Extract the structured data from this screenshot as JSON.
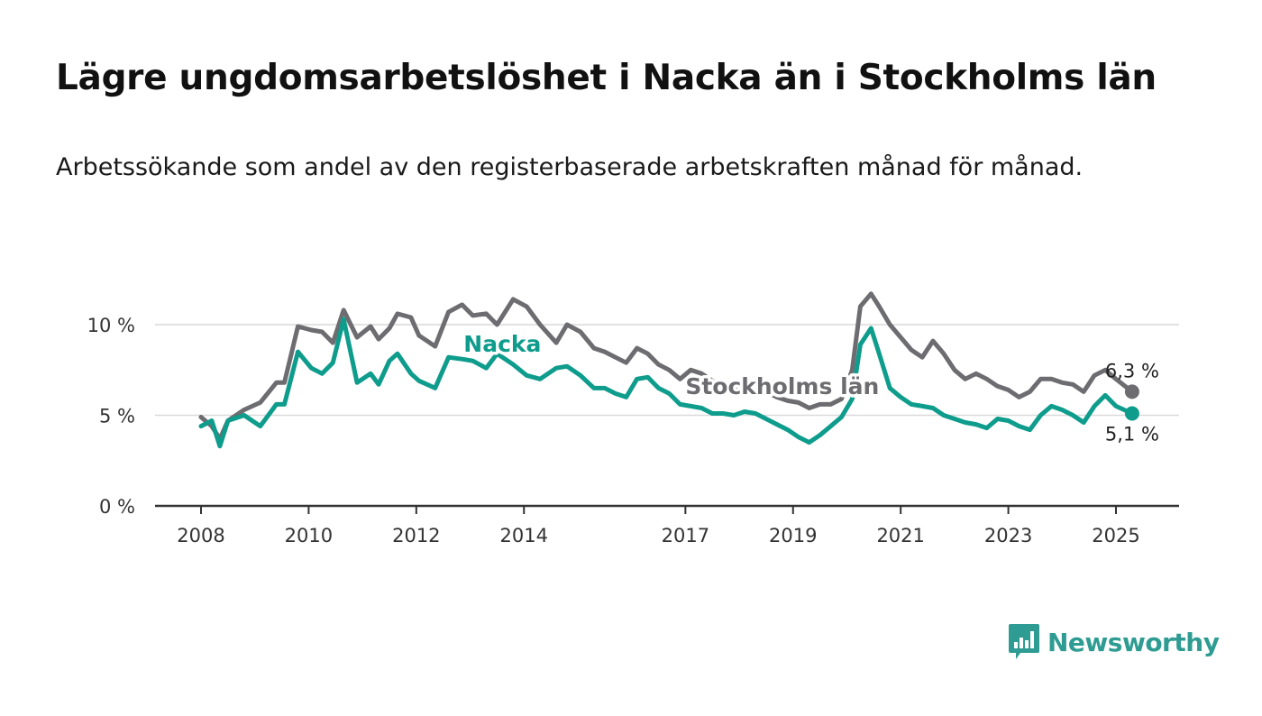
{
  "header": {
    "title": "Lägre ungdomsarbetslöshet i Nacka än i Stockholms län",
    "subtitle": "Arbetssökande som andel av den registerbaserade arbetskraften månad för månad."
  },
  "brand": {
    "name": "Newsworthy",
    "icon": "newsworthy-logo-icon",
    "color": "#2e9c92"
  },
  "chart_data": {
    "type": "line",
    "title": "Lägre ungdomsarbetslöshet i Nacka än i Stockholms län",
    "subtitle": "Arbetssökande som andel av den registerbaserade arbetskraften månad för månad.",
    "xlabel": "",
    "ylabel": "",
    "xlim": [
      2008,
      2025.4
    ],
    "ylim": [
      0,
      12
    ],
    "x_ticks": [
      {
        "value": 2008,
        "label": "2008"
      },
      {
        "value": 2010,
        "label": "2010"
      },
      {
        "value": 2012,
        "label": "2012"
      },
      {
        "value": 2014,
        "label": "2014"
      },
      {
        "value": 2017,
        "label": "2017"
      },
      {
        "value": 2019,
        "label": "2019"
      },
      {
        "value": 2021,
        "label": "2021"
      },
      {
        "value": 2023,
        "label": "2023"
      },
      {
        "value": 2025,
        "label": "2025"
      }
    ],
    "y_ticks": [
      {
        "value": 0,
        "label": "0 %"
      },
      {
        "value": 5,
        "label": "5 %"
      },
      {
        "value": 10,
        "label": "10 %"
      }
    ],
    "grid": true,
    "series": [
      {
        "name": "Stockholms län",
        "color": "#6d6c70",
        "end_label": "6,3 %",
        "x": [
          2008,
          2008.2,
          2008.35,
          2008.5,
          2008.8,
          2009.1,
          2009.4,
          2009.55,
          2009.8,
          2010.05,
          2010.25,
          2010.45,
          2010.65,
          2010.9,
          2011.15,
          2011.3,
          2011.5,
          2011.65,
          2011.9,
          2012.05,
          2012.2,
          2012.35,
          2012.6,
          2012.85,
          2013.05,
          2013.3,
          2013.5,
          2013.8,
          2014.05,
          2014.3,
          2014.6,
          2014.8,
          2015.05,
          2015.3,
          2015.5,
          2015.7,
          2015.9,
          2016.1,
          2016.3,
          2016.5,
          2016.7,
          2016.9,
          2017.1,
          2017.3,
          2017.5,
          2017.7,
          2017.9,
          2018.1,
          2018.3,
          2018.5,
          2018.7,
          2018.9,
          2019.1,
          2019.3,
          2019.5,
          2019.7,
          2019.9,
          2020.1,
          2020.25,
          2020.45,
          2020.6,
          2020.8,
          2021,
          2021.2,
          2021.4,
          2021.6,
          2021.8,
          2022,
          2022.2,
          2022.4,
          2022.6,
          2022.8,
          2023,
          2023.2,
          2023.4,
          2023.6,
          2023.8,
          2024,
          2024.2,
          2024.4,
          2024.6,
          2024.8,
          2025,
          2025.3
        ],
        "y": [
          4.9,
          4.4,
          3.7,
          4.7,
          5.3,
          5.7,
          6.8,
          6.8,
          9.9,
          9.7,
          9.6,
          9.0,
          10.8,
          9.3,
          9.9,
          9.2,
          9.8,
          10.6,
          10.4,
          9.4,
          9.1,
          8.8,
          10.7,
          11.1,
          10.5,
          10.6,
          10.0,
          11.4,
          11.0,
          10.0,
          9.0,
          10.0,
          9.6,
          8.7,
          8.5,
          8.2,
          7.9,
          8.7,
          8.4,
          7.8,
          7.5,
          7.0,
          7.5,
          7.3,
          6.9,
          6.6,
          6.5,
          6.4,
          6.5,
          6.3,
          6.0,
          5.8,
          5.7,
          5.4,
          5.6,
          5.6,
          5.9,
          7.5,
          11.0,
          11.7,
          11.0,
          10.0,
          9.3,
          8.6,
          8.2,
          9.1,
          8.4,
          7.5,
          7.0,
          7.3,
          7.0,
          6.6,
          6.4,
          6.0,
          6.3,
          7.0,
          7.0,
          6.8,
          6.7,
          6.3,
          7.2,
          7.5,
          7.0,
          6.3
        ]
      },
      {
        "name": "Nacka",
        "color": "#0e9c8c",
        "end_label": "5,1 %",
        "x": [
          2008,
          2008.2,
          2008.35,
          2008.5,
          2008.8,
          2009.1,
          2009.4,
          2009.55,
          2009.8,
          2010.05,
          2010.25,
          2010.45,
          2010.65,
          2010.9,
          2011.15,
          2011.3,
          2011.5,
          2011.65,
          2011.9,
          2012.05,
          2012.2,
          2012.35,
          2012.6,
          2012.85,
          2013.05,
          2013.3,
          2013.5,
          2013.8,
          2014.05,
          2014.3,
          2014.6,
          2014.8,
          2015.05,
          2015.3,
          2015.5,
          2015.7,
          2015.9,
          2016.1,
          2016.3,
          2016.5,
          2016.7,
          2016.9,
          2017.1,
          2017.3,
          2017.5,
          2017.7,
          2017.9,
          2018.1,
          2018.3,
          2018.5,
          2018.7,
          2018.9,
          2019.1,
          2019.3,
          2019.5,
          2019.7,
          2019.9,
          2020.1,
          2020.25,
          2020.45,
          2020.6,
          2020.8,
          2021,
          2021.2,
          2021.4,
          2021.6,
          2021.8,
          2022,
          2022.2,
          2022.4,
          2022.6,
          2022.8,
          2023,
          2023.2,
          2023.4,
          2023.6,
          2023.8,
          2024,
          2024.2,
          2024.4,
          2024.6,
          2024.8,
          2025,
          2025.3
        ],
        "y": [
          4.4,
          4.7,
          3.3,
          4.7,
          5.0,
          4.4,
          5.6,
          5.6,
          8.5,
          7.6,
          7.3,
          7.9,
          10.3,
          6.8,
          7.3,
          6.7,
          8.0,
          8.4,
          7.3,
          6.9,
          6.7,
          6.5,
          8.2,
          8.1,
          8.0,
          7.6,
          8.4,
          7.8,
          7.2,
          7.0,
          7.6,
          7.7,
          7.2,
          6.5,
          6.5,
          6.2,
          6.0,
          7.0,
          7.1,
          6.5,
          6.2,
          5.6,
          5.5,
          5.4,
          5.1,
          5.1,
          5.0,
          5.2,
          5.1,
          4.8,
          4.5,
          4.2,
          3.8,
          3.5,
          3.9,
          4.4,
          4.9,
          5.9,
          8.9,
          9.8,
          8.4,
          6.5,
          6.0,
          5.6,
          5.5,
          5.4,
          5.0,
          4.8,
          4.6,
          4.5,
          4.3,
          4.8,
          4.7,
          4.4,
          4.2,
          5.0,
          5.5,
          5.3,
          5.0,
          4.6,
          5.5,
          6.1,
          5.5,
          5.1
        ]
      }
    ]
  }
}
